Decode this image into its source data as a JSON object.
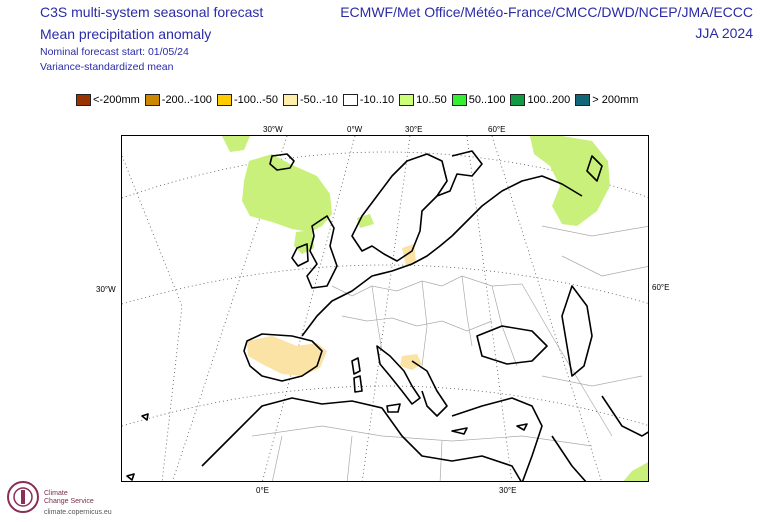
{
  "header": {
    "title_line1": "C3S multi-system seasonal forecast",
    "title_line2": "Mean precipitation anomaly",
    "forecast_start": "Nominal forecast start: 01/05/24",
    "variance_note": "Variance-standardized mean",
    "centres": "ECMWF/Met Office/Météo-France/CMCC/DWD/NCEP/JMA/ECCC",
    "season": "JJA 2024"
  },
  "legend": [
    {
      "label": "<-200mm",
      "color": "#993300"
    },
    {
      "label": "-200..-100",
      "color": "#cc8800"
    },
    {
      "label": "-100..-50",
      "color": "#ffcc00"
    },
    {
      "label": "-50..-10",
      "color": "#ffeeaa"
    },
    {
      "label": "-10..10",
      "color": "#ffffff"
    },
    {
      "label": "10..50",
      "color": "#ccff77"
    },
    {
      "label": "50..100",
      "color": "#33ee33"
    },
    {
      "label": "100..200",
      "color": "#119944"
    },
    {
      "label": "> 200mm",
      "color": "#116677"
    }
  ],
  "axes": {
    "top_labels": [
      "30°W",
      "0°W",
      "30°E",
      "60°E"
    ],
    "left_label": "30°W",
    "right_label": "60°E",
    "bottom_labels": [
      "0°E",
      "30°E"
    ]
  },
  "map_colors": {
    "coast": "#000000",
    "border": "#aaaaaa",
    "graticule": "#555555",
    "wet_light": "#c8f07a",
    "dry_light": "#fbe3a6"
  },
  "logo": {
    "line1": "Climate",
    "line2": "Change Service",
    "url": "climate.copernicus.eu"
  }
}
